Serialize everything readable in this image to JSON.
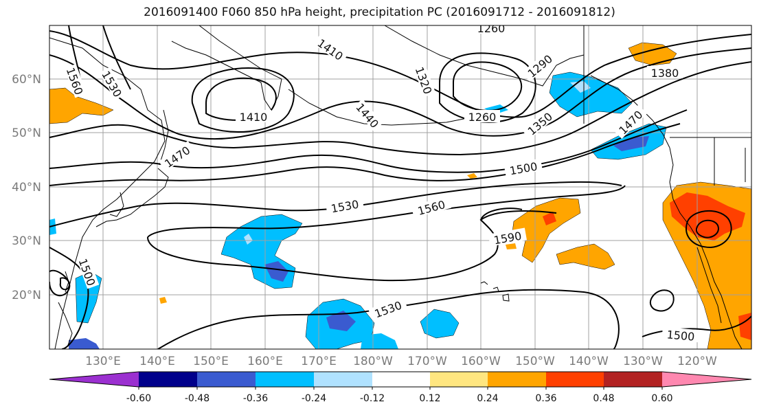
{
  "title": "2016091400 F060 850 hPa height, precipitation PC (2016091712 - 2016091812)",
  "latitude_labels": [
    "60°N",
    "50°N",
    "40°N",
    "30°N",
    "20°N"
  ],
  "longitude_labels": [
    "130°E",
    "140°E",
    "150°E",
    "160°E",
    "170°E",
    "180°W",
    "170°W",
    "160°W",
    "150°W",
    "140°W",
    "130°W",
    "120°W"
  ],
  "colorbar": {
    "tick_labels": [
      "-0.60",
      "-0.48",
      "-0.36",
      "-0.24",
      "-0.12",
      "0.12",
      "0.24",
      "0.36",
      "0.48",
      "0.60"
    ],
    "colors": [
      "#9b30d0",
      "#00008b",
      "#3a5bd0",
      "#00bfff",
      "#b0e2ff",
      "#ffffff",
      "#ffe680",
      "#ffa500",
      "#ff4000",
      "#b22222",
      "#ff88b0"
    ]
  },
  "contour_labels": [
    "1260",
    "1410",
    "1320",
    "1290",
    "1380",
    "1560",
    "1530",
    "1410",
    "1440",
    "1260",
    "1350",
    "1470",
    "1470",
    "1500",
    "1530",
    "1560",
    "1590",
    "1500",
    "1530",
    "1500"
  ],
  "colors": {
    "contour": "#000000",
    "grid": "#a0a0a0",
    "coast": "#000000"
  }
}
